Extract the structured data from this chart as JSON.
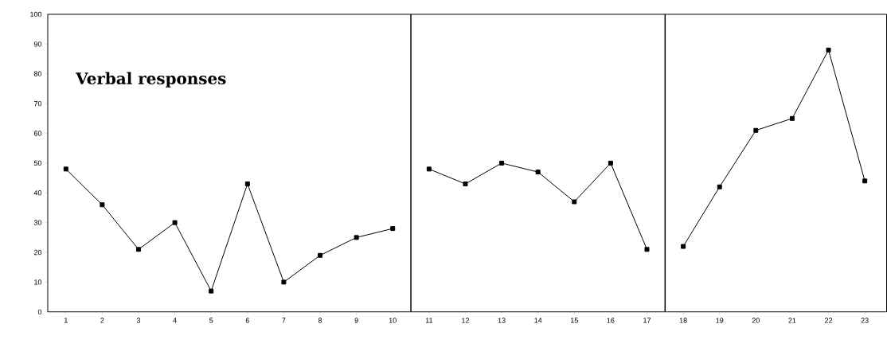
{
  "chart_data": {
    "type": "line",
    "annotations": [
      "Verbal responses"
    ],
    "x": [
      1,
      2,
      3,
      4,
      5,
      6,
      7,
      8,
      9,
      10,
      11,
      12,
      13,
      14,
      15,
      16,
      17,
      18,
      19,
      20,
      21,
      22,
      23
    ],
    "series": [
      {
        "color": "#000000",
        "values": [
          48,
          36,
          21,
          30,
          7,
          43,
          10,
          19,
          25,
          28,
          null,
          null,
          null,
          null,
          null,
          null,
          null,
          null,
          null,
          null,
          null,
          null,
          null
        ]
      },
      {
        "color": "#000000",
        "values": [
          null,
          null,
          null,
          null,
          null,
          null,
          null,
          null,
          null,
          null,
          48,
          43,
          50,
          47,
          37,
          50,
          21,
          null,
          null,
          null,
          null,
          null,
          null
        ]
      },
      {
        "color": "#000000",
        "values": [
          null,
          null,
          null,
          null,
          null,
          null,
          null,
          null,
          null,
          null,
          null,
          null,
          null,
          null,
          null,
          null,
          null,
          22,
          42,
          61,
          65,
          88,
          44
        ]
      }
    ],
    "xlim": [
      0.5,
      23.6
    ],
    "ylim": [
      0,
      100
    ],
    "xticks": [
      1,
      2,
      3,
      4,
      5,
      6,
      7,
      8,
      9,
      10,
      11,
      12,
      13,
      14,
      15,
      16,
      17,
      18,
      19,
      20,
      21,
      22,
      23
    ],
    "yticks": [
      0,
      10,
      20,
      30,
      40,
      50,
      60,
      70,
      80,
      90,
      100
    ],
    "ref_lines": [
      {
        "axis": "x",
        "value": 10.5,
        "color": "#000000"
      },
      {
        "axis": "x",
        "value": 17.5,
        "color": "#000000"
      }
    ],
    "marker": "square",
    "line_style": "solid"
  }
}
